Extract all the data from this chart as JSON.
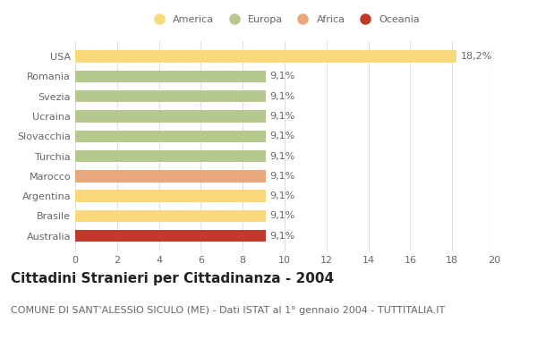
{
  "categories": [
    "Australia",
    "Brasile",
    "Argentina",
    "Marocco",
    "Turchia",
    "Slovacchia",
    "Ucraina",
    "Svezia",
    "Romania",
    "USA"
  ],
  "values": [
    9.1,
    9.1,
    9.1,
    9.1,
    9.1,
    9.1,
    9.1,
    9.1,
    9.1,
    18.2
  ],
  "colors": [
    "#c0392b",
    "#f9d97c",
    "#f9d97c",
    "#e8a87c",
    "#b5c98e",
    "#b5c98e",
    "#b5c98e",
    "#b5c98e",
    "#b5c98e",
    "#f9d97c"
  ],
  "bar_labels": [
    "9,1%",
    "9,1%",
    "9,1%",
    "9,1%",
    "9,1%",
    "9,1%",
    "9,1%",
    "9,1%",
    "9,1%",
    "18,2%"
  ],
  "xlim": [
    0,
    20
  ],
  "xticks": [
    0,
    2,
    4,
    6,
    8,
    10,
    12,
    14,
    16,
    18,
    20
  ],
  "title": "Cittadini Stranieri per Cittadinanza - 2004",
  "subtitle": "COMUNE DI SANT'ALESSIO SICULO (ME) - Dati ISTAT al 1° gennaio 2004 - TUTTITALIA.IT",
  "legend_labels": [
    "America",
    "Europa",
    "Africa",
    "Oceania"
  ],
  "legend_colors": [
    "#f9d97c",
    "#b5c98e",
    "#e8a87c",
    "#c0392b"
  ],
  "background_color": "#ffffff",
  "grid_color": "#e0e0e0",
  "title_fontsize": 11,
  "subtitle_fontsize": 8,
  "label_fontsize": 8,
  "tick_fontsize": 8
}
